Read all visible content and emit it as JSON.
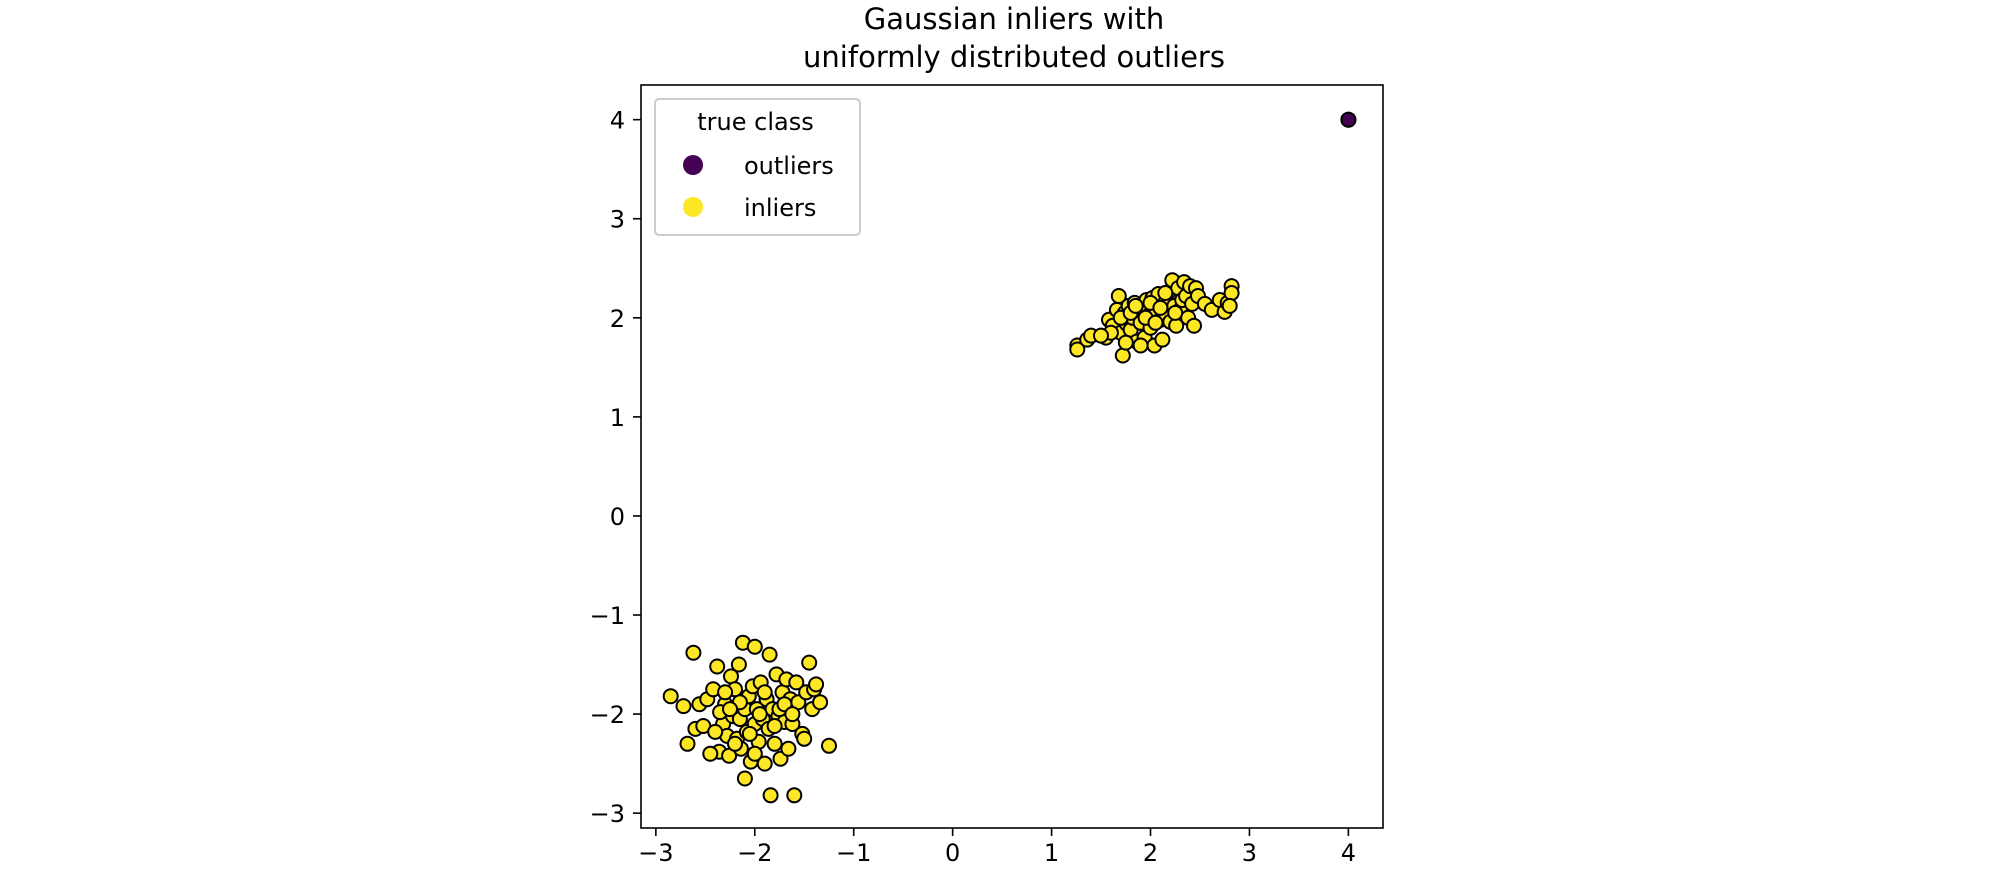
{
  "chart_data": {
    "type": "scatter",
    "title_lines": [
      "Gaussian inliers with",
      "uniformly distributed outliers"
    ],
    "xlim": [
      -3.15,
      4.35
    ],
    "ylim": [
      -3.15,
      4.35
    ],
    "xticks": [
      -3,
      -2,
      -1,
      0,
      1,
      2,
      3,
      4
    ],
    "yticks": [
      -3,
      -2,
      -1,
      0,
      1,
      2,
      3,
      4
    ],
    "xtick_labels": [
      "−3",
      "−2",
      "−1",
      "0",
      "1",
      "2",
      "3",
      "4"
    ],
    "ytick_labels": [
      "−3",
      "−2",
      "−1",
      "0",
      "1",
      "2",
      "3",
      "4"
    ],
    "grid": false,
    "legend": {
      "title": "true class",
      "location": "top-left",
      "entries": [
        {
          "label": "outliers",
          "color": "#440154"
        },
        {
          "label": "inliers",
          "color": "#fde725"
        }
      ]
    },
    "series": [
      {
        "name": "outliers",
        "color": "#440154",
        "points": [
          [
            4.0,
            4.0
          ],
          [
            4.0,
            4.0
          ]
        ]
      },
      {
        "name": "inliers",
        "color": "#fde725",
        "points": [
          [
            1.26,
            1.72
          ],
          [
            1.26,
            1.68
          ],
          [
            1.36,
            1.78
          ],
          [
            1.4,
            1.82
          ],
          [
            1.55,
            1.8
          ],
          [
            1.58,
            1.98
          ],
          [
            1.62,
            1.92
          ],
          [
            1.66,
            2.08
          ],
          [
            1.68,
            2.22
          ],
          [
            1.7,
            1.85
          ],
          [
            1.72,
            1.62
          ],
          [
            1.74,
            2.05
          ],
          [
            1.76,
            1.94
          ],
          [
            1.78,
            2.12
          ],
          [
            1.8,
            1.88
          ],
          [
            1.82,
            2.0
          ],
          [
            1.84,
            2.15
          ],
          [
            1.86,
            1.76
          ],
          [
            1.88,
            2.05
          ],
          [
            1.9,
            1.95
          ],
          [
            1.92,
            2.1
          ],
          [
            1.94,
            1.8
          ],
          [
            1.96,
            2.18
          ],
          [
            1.98,
            2.02
          ],
          [
            2.0,
            1.9
          ],
          [
            2.02,
            2.2
          ],
          [
            2.04,
            1.72
          ],
          [
            2.06,
            2.08
          ],
          [
            2.08,
            2.24
          ],
          [
            2.1,
            1.98
          ],
          [
            2.12,
            1.78
          ],
          [
            2.14,
            2.14
          ],
          [
            2.16,
            2.02
          ],
          [
            2.18,
            2.26
          ],
          [
            2.2,
            1.96
          ],
          [
            2.22,
            2.38
          ],
          [
            2.24,
            2.12
          ],
          [
            2.26,
            1.92
          ],
          [
            2.28,
            2.3
          ],
          [
            2.3,
            2.08
          ],
          [
            2.32,
            2.18
          ],
          [
            2.34,
            2.36
          ],
          [
            2.36,
            2.22
          ],
          [
            2.38,
            2.0
          ],
          [
            2.4,
            2.32
          ],
          [
            2.42,
            2.14
          ],
          [
            2.44,
            1.92
          ],
          [
            2.46,
            2.3
          ],
          [
            2.48,
            2.22
          ],
          [
            2.55,
            2.14
          ],
          [
            2.62,
            2.08
          ],
          [
            2.7,
            2.18
          ],
          [
            2.75,
            2.06
          ],
          [
            2.78,
            2.15
          ],
          [
            2.82,
            2.32
          ],
          [
            2.82,
            2.25
          ],
          [
            2.8,
            2.12
          ],
          [
            2.0,
            2.15
          ],
          [
            1.95,
            2.0
          ],
          [
            1.7,
            2.0
          ],
          [
            1.8,
            2.05
          ],
          [
            2.1,
            2.1
          ],
          [
            1.6,
            1.85
          ],
          [
            1.75,
            1.75
          ],
          [
            1.5,
            1.82
          ],
          [
            1.9,
            1.72
          ],
          [
            2.05,
            1.95
          ],
          [
            2.25,
            2.05
          ],
          [
            2.15,
            2.25
          ],
          [
            1.85,
            2.12
          ],
          [
            -2.85,
            -1.82
          ],
          [
            -2.72,
            -1.92
          ],
          [
            -2.68,
            -2.3
          ],
          [
            -2.62,
            -1.38
          ],
          [
            -2.6,
            -2.15
          ],
          [
            -2.56,
            -1.9
          ],
          [
            -2.52,
            -2.12
          ],
          [
            -2.48,
            -1.85
          ],
          [
            -2.42,
            -1.75
          ],
          [
            -2.38,
            -1.52
          ],
          [
            -2.36,
            -2.38
          ],
          [
            -2.32,
            -2.1
          ],
          [
            -2.3,
            -1.9
          ],
          [
            -2.28,
            -2.22
          ],
          [
            -2.26,
            -2.42
          ],
          [
            -2.24,
            -1.62
          ],
          [
            -2.22,
            -2.02
          ],
          [
            -2.2,
            -1.75
          ],
          [
            -2.18,
            -2.25
          ],
          [
            -2.16,
            -1.5
          ],
          [
            -2.15,
            -2.05
          ],
          [
            -2.14,
            -2.35
          ],
          [
            -2.12,
            -1.28
          ],
          [
            -2.1,
            -1.95
          ],
          [
            -2.1,
            -2.65
          ],
          [
            -2.08,
            -2.18
          ],
          [
            -2.06,
            -1.82
          ],
          [
            -2.04,
            -2.48
          ],
          [
            -2.02,
            -1.72
          ],
          [
            -2.0,
            -2.1
          ],
          [
            -2.0,
            -1.32
          ],
          [
            -1.98,
            -1.95
          ],
          [
            -1.96,
            -2.28
          ],
          [
            -1.94,
            -1.68
          ],
          [
            -1.92,
            -2.05
          ],
          [
            -1.9,
            -2.5
          ],
          [
            -1.88,
            -1.85
          ],
          [
            -1.86,
            -2.15
          ],
          [
            -1.85,
            -1.4
          ],
          [
            -1.84,
            -2.82
          ],
          [
            -1.82,
            -1.95
          ],
          [
            -1.8,
            -2.3
          ],
          [
            -1.78,
            -1.6
          ],
          [
            -1.76,
            -2.02
          ],
          [
            -1.74,
            -2.45
          ],
          [
            -1.72,
            -1.78
          ],
          [
            -1.7,
            -2.08
          ],
          [
            -1.68,
            -1.65
          ],
          [
            -1.66,
            -2.35
          ],
          [
            -1.64,
            -1.85
          ],
          [
            -1.62,
            -2.1
          ],
          [
            -1.6,
            -2.82
          ],
          [
            -1.58,
            -1.68
          ],
          [
            -1.56,
            -1.88
          ],
          [
            -1.52,
            -2.2
          ],
          [
            -1.5,
            -2.25
          ],
          [
            -1.48,
            -1.78
          ],
          [
            -1.45,
            -1.48
          ],
          [
            -1.42,
            -1.95
          ],
          [
            -1.4,
            -1.75
          ],
          [
            -1.38,
            -1.7
          ],
          [
            -1.34,
            -1.88
          ],
          [
            -1.25,
            -2.32
          ],
          [
            -2.4,
            -2.18
          ],
          [
            -2.2,
            -2.3
          ],
          [
            -1.95,
            -2.0
          ],
          [
            -2.05,
            -2.2
          ],
          [
            -1.75,
            -1.95
          ],
          [
            -2.3,
            -1.78
          ],
          [
            -1.9,
            -1.78
          ],
          [
            -2.45,
            -2.4
          ],
          [
            -2.15,
            -1.88
          ],
          [
            -1.8,
            -2.12
          ],
          [
            -2.35,
            -1.98
          ],
          [
            -1.7,
            -1.9
          ],
          [
            -2.0,
            -2.4
          ],
          [
            -1.62,
            -2.0
          ],
          [
            -2.25,
            -1.95
          ]
        ]
      }
    ]
  }
}
